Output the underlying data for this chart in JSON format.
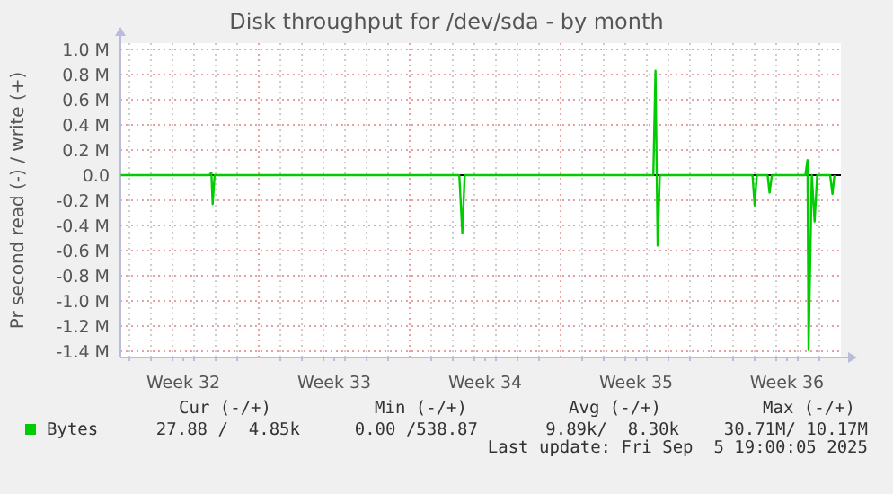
{
  "chart_data": {
    "type": "line",
    "title": "Disk throughput for /dev/sda - by month",
    "ylabel": "Pr second read (-) / write (+)",
    "xlim": [
      "2025-08-04T13:55",
      "2025-09-07T00:00"
    ],
    "xticks": [
      {
        "value": "2025-08-05",
        "label": null
      },
      {
        "value": "2025-08-06",
        "label": null
      },
      {
        "value": "2025-08-07",
        "label": null
      },
      {
        "value": "2025-08-07T12:00",
        "label": "Week 32"
      },
      {
        "value": "2025-08-08",
        "label": null
      },
      {
        "value": "2025-08-09",
        "label": null
      },
      {
        "value": "2025-08-10",
        "label": null
      },
      {
        "value": "2025-08-12",
        "label": null
      },
      {
        "value": "2025-08-13",
        "label": null
      },
      {
        "value": "2025-08-14",
        "label": null
      },
      {
        "value": "2025-08-14T12:00",
        "label": "Week 33"
      },
      {
        "value": "2025-08-15",
        "label": null
      },
      {
        "value": "2025-08-16",
        "label": null
      },
      {
        "value": "2025-08-17",
        "label": null
      },
      {
        "value": "2025-08-19",
        "label": null
      },
      {
        "value": "2025-08-20",
        "label": null
      },
      {
        "value": "2025-08-21",
        "label": null
      },
      {
        "value": "2025-08-21T12:00",
        "label": "Week 34"
      },
      {
        "value": "2025-08-22",
        "label": null
      },
      {
        "value": "2025-08-23",
        "label": null
      },
      {
        "value": "2025-08-24",
        "label": null
      },
      {
        "value": "2025-08-26",
        "label": null
      },
      {
        "value": "2025-08-27",
        "label": null
      },
      {
        "value": "2025-08-28",
        "label": null
      },
      {
        "value": "2025-08-28T12:00",
        "label": "Week 35"
      },
      {
        "value": "2025-08-29",
        "label": null
      },
      {
        "value": "2025-08-30",
        "label": null
      },
      {
        "value": "2025-08-31",
        "label": null
      },
      {
        "value": "2025-09-02",
        "label": null
      },
      {
        "value": "2025-09-03",
        "label": null
      },
      {
        "value": "2025-09-04",
        "label": null
      },
      {
        "value": "2025-09-04T12:00",
        "label": "Week 36"
      },
      {
        "value": "2025-09-05",
        "label": null
      },
      {
        "value": "2025-09-06",
        "label": null
      }
    ],
    "ylim": [
      -1450000,
      1050000
    ],
    "yticks": [
      {
        "value": -1400000,
        "label": "-1.4 M"
      },
      {
        "value": -1200000,
        "label": "-1.2 M"
      },
      {
        "value": -1000000,
        "label": "-1.0 M"
      },
      {
        "value": -800000,
        "label": "-0.8 M"
      },
      {
        "value": -600000,
        "label": "-0.6 M"
      },
      {
        "value": -400000,
        "label": "-0.4 M"
      },
      {
        "value": -200000,
        "label": "-0.2 M"
      },
      {
        "value": 0,
        "label": "0.0"
      },
      {
        "value": 200000,
        "label": "0.2 M"
      },
      {
        "value": 400000,
        "label": "0.4 M"
      },
      {
        "value": 600000,
        "label": "0.6 M"
      },
      {
        "value": 800000,
        "label": "0.8 M"
      },
      {
        "value": 1000000,
        "label": "1.0 M"
      }
    ],
    "grid": true,
    "legend": "bottom",
    "marker": "none",
    "line_style": "solid",
    "ref_lines": [
      {
        "axis": "x",
        "value": "2025-08-11",
        "color": "#e8a0a0",
        "line_style": "dotted"
      },
      {
        "axis": "x",
        "value": "2025-08-18",
        "color": "#e8a0a0",
        "line_style": "dotted"
      },
      {
        "axis": "x",
        "value": "2025-08-25",
        "color": "#e8a0a0",
        "line_style": "dotted"
      },
      {
        "axis": "x",
        "value": "2025-09-01",
        "color": "#e8a0a0",
        "line_style": "dotted"
      },
      {
        "axis": "y",
        "value": 0,
        "color": "#000000",
        "line_style": "solid"
      }
    ],
    "series": [
      {
        "name": "Bytes",
        "color": "#00cc00",
        "x": [
          "2025-08-04T14:24",
          "2025-08-08T16:48",
          "2025-08-08T19:12",
          "2025-08-08T20:38",
          "2025-08-08T22:48",
          "2025-08-20T07:12",
          "2025-08-20T10:34",
          "2025-08-20T13:12",
          "2025-08-29T07:12",
          "2025-08-29T09:36",
          "2025-08-29T12:00",
          "2025-08-29T14:24",
          "2025-09-02T21:36",
          "2025-09-03T00:00",
          "2025-09-03T02:24",
          "2025-09-03T14:24",
          "2025-09-03T16:34",
          "2025-09-03T19:12",
          "2025-09-05T08:24",
          "2025-09-05T10:48",
          "2025-09-05T12:00",
          "2025-09-05T15:36",
          "2025-09-05T18:43",
          "2025-09-05T21:36",
          "2025-09-06T12:00",
          "2025-09-06T14:38",
          "2025-09-06T16:48"
        ],
        "values": [
          0,
          0,
          20000,
          -230000,
          0,
          0,
          -460000,
          0,
          0,
          830000,
          -560000,
          0,
          0,
          -240000,
          0,
          0,
          -140000,
          0,
          0,
          120000,
          -1390000,
          0,
          -370000,
          0,
          0,
          -150000,
          0
        ]
      }
    ],
    "annotations": [
      "Cur (-/+)",
      "Min (-/+)",
      "Avg (-/+)",
      "Max (-/+)",
      "27.88 /  4.85k",
      "0.00 /538.87",
      "9.89k/  8.30k",
      "30.71M/ 10.17M",
      "Last update: Fri Sep  5 19:00:05 2025"
    ]
  }
}
